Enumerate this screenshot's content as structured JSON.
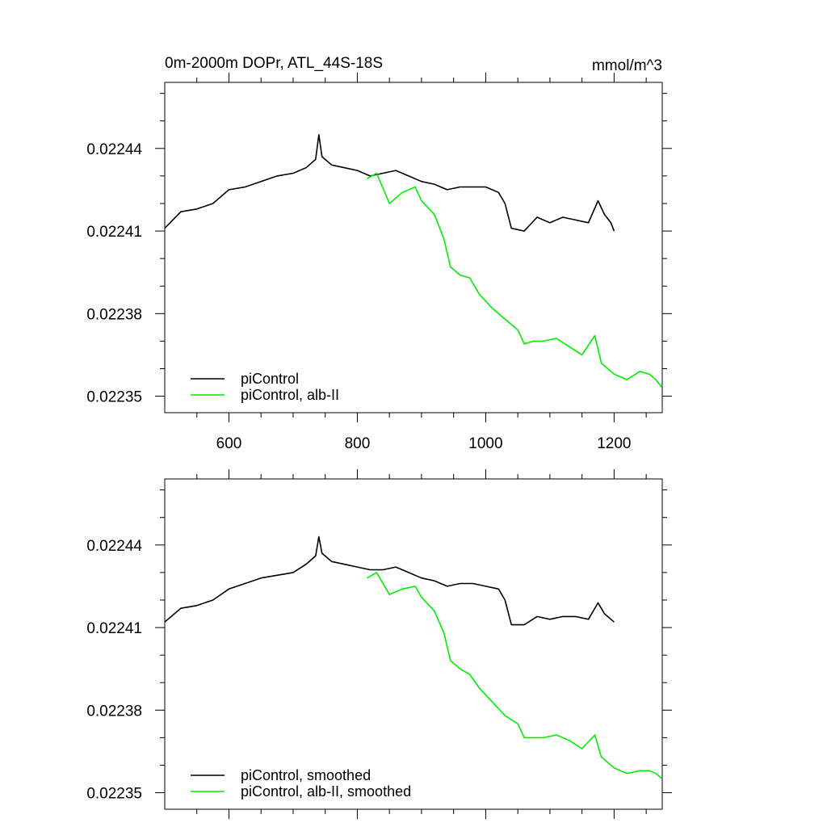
{
  "title_left": "0m-2000m DOPr, ATL_44S-18S",
  "title_right": "mmol/m^3",
  "colors": {
    "piControl": "#000000",
    "alb_II": "#00ee00"
  },
  "chart_data": [
    {
      "type": "line",
      "title": "0m-2000m DOPr, ATL_44S-18S",
      "units": "mmol/m^3",
      "xlim": [
        500,
        1275
      ],
      "ylim": [
        0.022344,
        0.022464
      ],
      "xticks": [
        "600",
        "800",
        "1000",
        "1200"
      ],
      "yticks": [
        "0.02244",
        "0.02241",
        "0.02238",
        "0.02235"
      ],
      "ytick_values": [
        0.02244,
        0.02241,
        0.02238,
        0.02235
      ],
      "legend": [
        "piControl",
        "piControl, alb-II"
      ],
      "legend_position": "bottom-left",
      "series": [
        {
          "name": "piControl",
          "color": "#000000",
          "x": [
            500,
            525,
            550,
            575,
            600,
            625,
            650,
            675,
            700,
            720,
            735,
            740,
            745,
            760,
            780,
            800,
            820,
            840,
            860,
            880,
            900,
            920,
            940,
            960,
            980,
            1000,
            1020,
            1030,
            1040,
            1060,
            1080,
            1100,
            1120,
            1140,
            1160,
            1175,
            1185,
            1195,
            1200
          ],
          "y": [
            0.022411,
            0.022417,
            0.022418,
            0.02242,
            0.022425,
            0.022426,
            0.022428,
            0.02243,
            0.022431,
            0.022433,
            0.022436,
            0.022445,
            0.022437,
            0.022434,
            0.022433,
            0.022432,
            0.02243,
            0.022431,
            0.022432,
            0.02243,
            0.022428,
            0.022427,
            0.022425,
            0.022426,
            0.022426,
            0.022426,
            0.022424,
            0.02242,
            0.022411,
            0.02241,
            0.022415,
            0.022413,
            0.022415,
            0.022414,
            0.022413,
            0.022421,
            0.022416,
            0.022413,
            0.02241
          ]
        },
        {
          "name": "piControl, alb-II",
          "color": "#00ee00",
          "x": [
            815,
            830,
            850,
            870,
            890,
            900,
            920,
            935,
            945,
            960,
            975,
            990,
            1010,
            1030,
            1050,
            1060,
            1075,
            1090,
            1110,
            1130,
            1150,
            1170,
            1180,
            1200,
            1220,
            1240,
            1255,
            1265,
            1275
          ],
          "y": [
            0.022429,
            0.022431,
            0.02242,
            0.022424,
            0.022426,
            0.022421,
            0.022416,
            0.022407,
            0.022397,
            0.022394,
            0.022393,
            0.022387,
            0.022382,
            0.022378,
            0.022374,
            0.022369,
            0.02237,
            0.02237,
            0.022371,
            0.022368,
            0.022365,
            0.022372,
            0.022362,
            0.022358,
            0.022356,
            0.022359,
            0.022358,
            0.022356,
            0.022353
          ]
        }
      ]
    },
    {
      "type": "line",
      "xlim": [
        500,
        1275
      ],
      "ylim": [
        0.022344,
        0.022464
      ],
      "xticks": [
        "",
        "",
        "",
        ""
      ],
      "yticks": [
        "0.02244",
        "0.02241",
        "0.02238",
        "0.02235"
      ],
      "ytick_values": [
        0.02244,
        0.02241,
        0.02238,
        0.02235
      ],
      "legend": [
        "piControl, smoothed",
        "piControl, alb-II, smoothed"
      ],
      "legend_position": "bottom-left",
      "series": [
        {
          "name": "piControl, smoothed",
          "color": "#000000",
          "x": [
            500,
            525,
            550,
            575,
            600,
            625,
            650,
            675,
            700,
            720,
            735,
            740,
            745,
            760,
            780,
            800,
            820,
            840,
            860,
            880,
            900,
            920,
            940,
            960,
            980,
            1000,
            1020,
            1030,
            1040,
            1060,
            1080,
            1100,
            1120,
            1140,
            1160,
            1175,
            1185,
            1195,
            1200
          ],
          "y": [
            0.022412,
            0.022417,
            0.022418,
            0.02242,
            0.022424,
            0.022426,
            0.022428,
            0.022429,
            0.02243,
            0.022433,
            0.022436,
            0.022443,
            0.022437,
            0.022434,
            0.022433,
            0.022432,
            0.022431,
            0.022431,
            0.022432,
            0.02243,
            0.022428,
            0.022427,
            0.022425,
            0.022426,
            0.022426,
            0.022425,
            0.022424,
            0.02242,
            0.022411,
            0.022411,
            0.022414,
            0.022413,
            0.022414,
            0.022414,
            0.022413,
            0.022419,
            0.022415,
            0.022413,
            0.022412
          ]
        },
        {
          "name": "piControl, alb-II, smoothed",
          "color": "#00ee00",
          "x": [
            815,
            830,
            850,
            870,
            890,
            900,
            920,
            935,
            945,
            960,
            975,
            990,
            1010,
            1030,
            1050,
            1060,
            1075,
            1090,
            1110,
            1130,
            1150,
            1170,
            1180,
            1200,
            1220,
            1240,
            1255,
            1265,
            1275
          ],
          "y": [
            0.022428,
            0.02243,
            0.022422,
            0.022424,
            0.022425,
            0.022421,
            0.022416,
            0.022408,
            0.022398,
            0.022395,
            0.022393,
            0.022388,
            0.022383,
            0.022378,
            0.022375,
            0.02237,
            0.02237,
            0.02237,
            0.022371,
            0.022369,
            0.022366,
            0.022371,
            0.022363,
            0.022359,
            0.022357,
            0.022358,
            0.022358,
            0.022357,
            0.022355
          ]
        }
      ]
    }
  ]
}
